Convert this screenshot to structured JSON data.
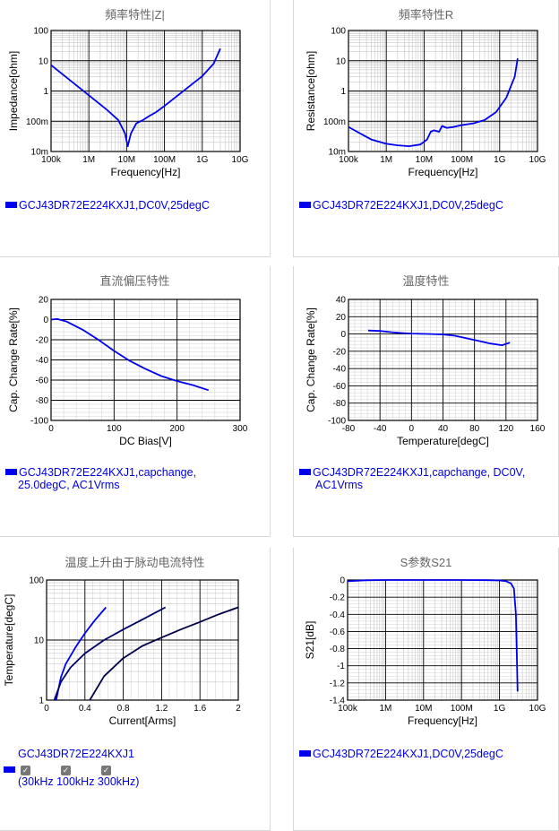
{
  "chart_data": [
    {
      "type": "line",
      "title": "頻率特性|Z|",
      "xlabel": "Frequency[Hz]",
      "ylabel": "Impedance[ohm]",
      "xscale": "log",
      "yscale": "log",
      "xlim": [
        100000,
        10000000000
      ],
      "ylim": [
        0.01,
        100
      ],
      "xticks": [
        "100k",
        "1M",
        "10M",
        "100M",
        "1G",
        "10G"
      ],
      "yticks": [
        "100",
        "10",
        "1",
        "100m",
        "10m"
      ],
      "grid": true,
      "series": [
        {
          "name": "GCJ43DR72E224KXJ1,DC0V,25degC",
          "color": "#0000ee",
          "x": [
            100000,
            300000,
            1000000,
            3000000,
            6000000,
            9000000,
            10700000,
            13000000,
            18000000,
            27000000,
            40000000,
            60000000,
            100000000,
            300000000,
            1000000000,
            2000000000,
            3000000000
          ],
          "y": [
            7.2,
            2.4,
            0.72,
            0.24,
            0.11,
            0.04,
            0.015,
            0.04,
            0.085,
            0.11,
            0.15,
            0.2,
            0.32,
            0.95,
            3.1,
            8.0,
            25
          ]
        }
      ]
    },
    {
      "type": "line",
      "title": "頻率特性R",
      "xlabel": "Frequency[Hz]",
      "ylabel": "Resistance[ohm]",
      "xscale": "log",
      "yscale": "log",
      "xlim": [
        100000,
        10000000000
      ],
      "ylim": [
        0.01,
        100
      ],
      "xticks": [
        "100k",
        "1M",
        "10M",
        "100M",
        "1G",
        "10G"
      ],
      "yticks": [
        "100",
        "10",
        "1",
        "100m",
        "10m"
      ],
      "grid": true,
      "series": [
        {
          "name": "GCJ43DR72E224KXJ1,DC0V,25degC",
          "color": "#0000ee",
          "x": [
            100000,
            200000,
            400000,
            1000000,
            2000000,
            4000000,
            8000000,
            12000000,
            15000000,
            18000000,
            25000000,
            30000000,
            40000000,
            60000000,
            100000000,
            200000000,
            400000000,
            800000000,
            1500000000,
            2500000000,
            3000000000
          ],
          "y": [
            0.065,
            0.04,
            0.025,
            0.018,
            0.016,
            0.015,
            0.017,
            0.025,
            0.045,
            0.05,
            0.045,
            0.07,
            0.06,
            0.065,
            0.075,
            0.085,
            0.11,
            0.2,
            0.6,
            3.0,
            12
          ]
        }
      ]
    },
    {
      "type": "line",
      "title": "直流偏压特性",
      "xlabel": "DC Bias[V]",
      "ylabel": "Cap. Change Rate[%]",
      "xlim": [
        0,
        300
      ],
      "ylim": [
        -100,
        20
      ],
      "xticks": [
        "0",
        "100",
        "200",
        "300"
      ],
      "yticks": [
        "20",
        "0",
        "-20",
        "-40",
        "-60",
        "-80",
        "-100"
      ],
      "grid": true,
      "series": [
        {
          "name": "GCJ43DR72E224KXJ1,capchange, 25.0degC, AC1Vrms",
          "color": "#0000ee",
          "x": [
            0,
            10,
            25,
            50,
            75,
            100,
            125,
            150,
            175,
            200,
            225,
            250
          ],
          "y": [
            0,
            0.5,
            -2,
            -10,
            -20,
            -31,
            -41,
            -49,
            -56,
            -61,
            -65,
            -70
          ]
        }
      ]
    },
    {
      "type": "line",
      "title": "温度特性",
      "xlabel": "Temperature[degC]",
      "ylabel": "Cap. Change Rate[%]",
      "xlim": [
        -80,
        160
      ],
      "ylim": [
        -100,
        40
      ],
      "xticks": [
        "-80",
        "-40",
        "0",
        "40",
        "80",
        "120",
        "160"
      ],
      "yticks": [
        "40",
        "20",
        "0",
        "-20",
        "-40",
        "-60",
        "-80",
        "-100"
      ],
      "grid": true,
      "series": [
        {
          "name": "GCJ43DR72E224KXJ1,capchange, DC0V, AC1Vrms",
          "color": "#0000ee",
          "x": [
            -55,
            -40,
            -25,
            -10,
            0,
            25,
            40,
            55,
            70,
            85,
            100,
            115,
            125
          ],
          "y": [
            4,
            3.5,
            2,
            1,
            0.5,
            0,
            -0.5,
            -2,
            -5,
            -8,
            -11,
            -13,
            -10
          ]
        }
      ]
    },
    {
      "type": "line",
      "title": "温度上升由于脉动电流特性",
      "xlabel": "Current[Arms]",
      "ylabel": "Temperature[degC]",
      "xscale": "linear",
      "yscale": "log",
      "xlim": [
        0,
        2
      ],
      "ylim": [
        1,
        100
      ],
      "xticks": [
        "0",
        "0.4",
        "0.8",
        "1.2",
        "1.6",
        "2"
      ],
      "yticks": [
        "100",
        "10",
        "1"
      ],
      "grid": true,
      "series": [
        {
          "name": "30kHz",
          "color": "#0000ee",
          "x": [
            0.1,
            0.15,
            0.2,
            0.3,
            0.4,
            0.5,
            0.62
          ],
          "y": [
            1,
            2.4,
            4,
            7.5,
            13,
            21,
            35
          ]
        },
        {
          "name": "100kHz",
          "color": "#000066",
          "x": [
            0.08,
            0.15,
            0.25,
            0.4,
            0.6,
            0.8,
            1.0,
            1.24
          ],
          "y": [
            1,
            2,
            3.5,
            6,
            10,
            15,
            22,
            35
          ]
        },
        {
          "name": "300kHz",
          "color": "#000044",
          "x": [
            0.45,
            0.6,
            0.8,
            1.0,
            1.2,
            1.4,
            1.6,
            1.8,
            2.0
          ],
          "y": [
            1,
            2.5,
            5,
            8,
            11,
            15,
            20,
            27,
            35
          ]
        }
      ]
    },
    {
      "type": "line",
      "title": "S参数S21",
      "xlabel": "Frequency[Hz]",
      "ylabel": "S21[dB]",
      "xscale": "log",
      "yscale": "linear",
      "xlim": [
        100000,
        10000000000
      ],
      "ylim": [
        -1.4,
        0
      ],
      "xticks": [
        "100k",
        "1M",
        "10M",
        "100M",
        "1G",
        "10G"
      ],
      "yticks": [
        "0",
        "-0.2",
        "-0.4",
        "-0.6",
        "-0.8",
        "-1",
        "-1.2",
        "-1.4"
      ],
      "grid": true,
      "series": [
        {
          "name": "GCJ43DR72E224KXJ1,DC0V,25degC",
          "color": "#0000ee",
          "x": [
            100000,
            300000,
            1000000,
            10000000,
            100000000,
            500000000,
            1000000000,
            1500000000,
            2000000000,
            2400000000,
            2700000000,
            3000000000
          ],
          "y": [
            -0.015,
            -0.003,
            0,
            0,
            0,
            -0.002,
            -0.005,
            -0.015,
            -0.04,
            -0.1,
            -0.4,
            -1.3
          ]
        }
      ]
    }
  ],
  "legends": {
    "p1": "GCJ43DR72E224KXJ1,DC0V,25degC",
    "p2": "GCJ43DR72E224KXJ1,DC0V,25degC",
    "p3_l1": "GCJ43DR72E224KXJ1,capchange,",
    "p3_l2": "25.0degC, AC1Vrms",
    "p4_l1": "GCJ43DR72E224KXJ1,capchange, DC0V,",
    "p4_l2": "AC1Vrms",
    "p5": "GCJ43DR72E224KXJ1",
    "p5_checks": "(30kHz 100kHz 300kHz)",
    "p6": "GCJ43DR72E224KXJ1,DC0V,25degC"
  }
}
